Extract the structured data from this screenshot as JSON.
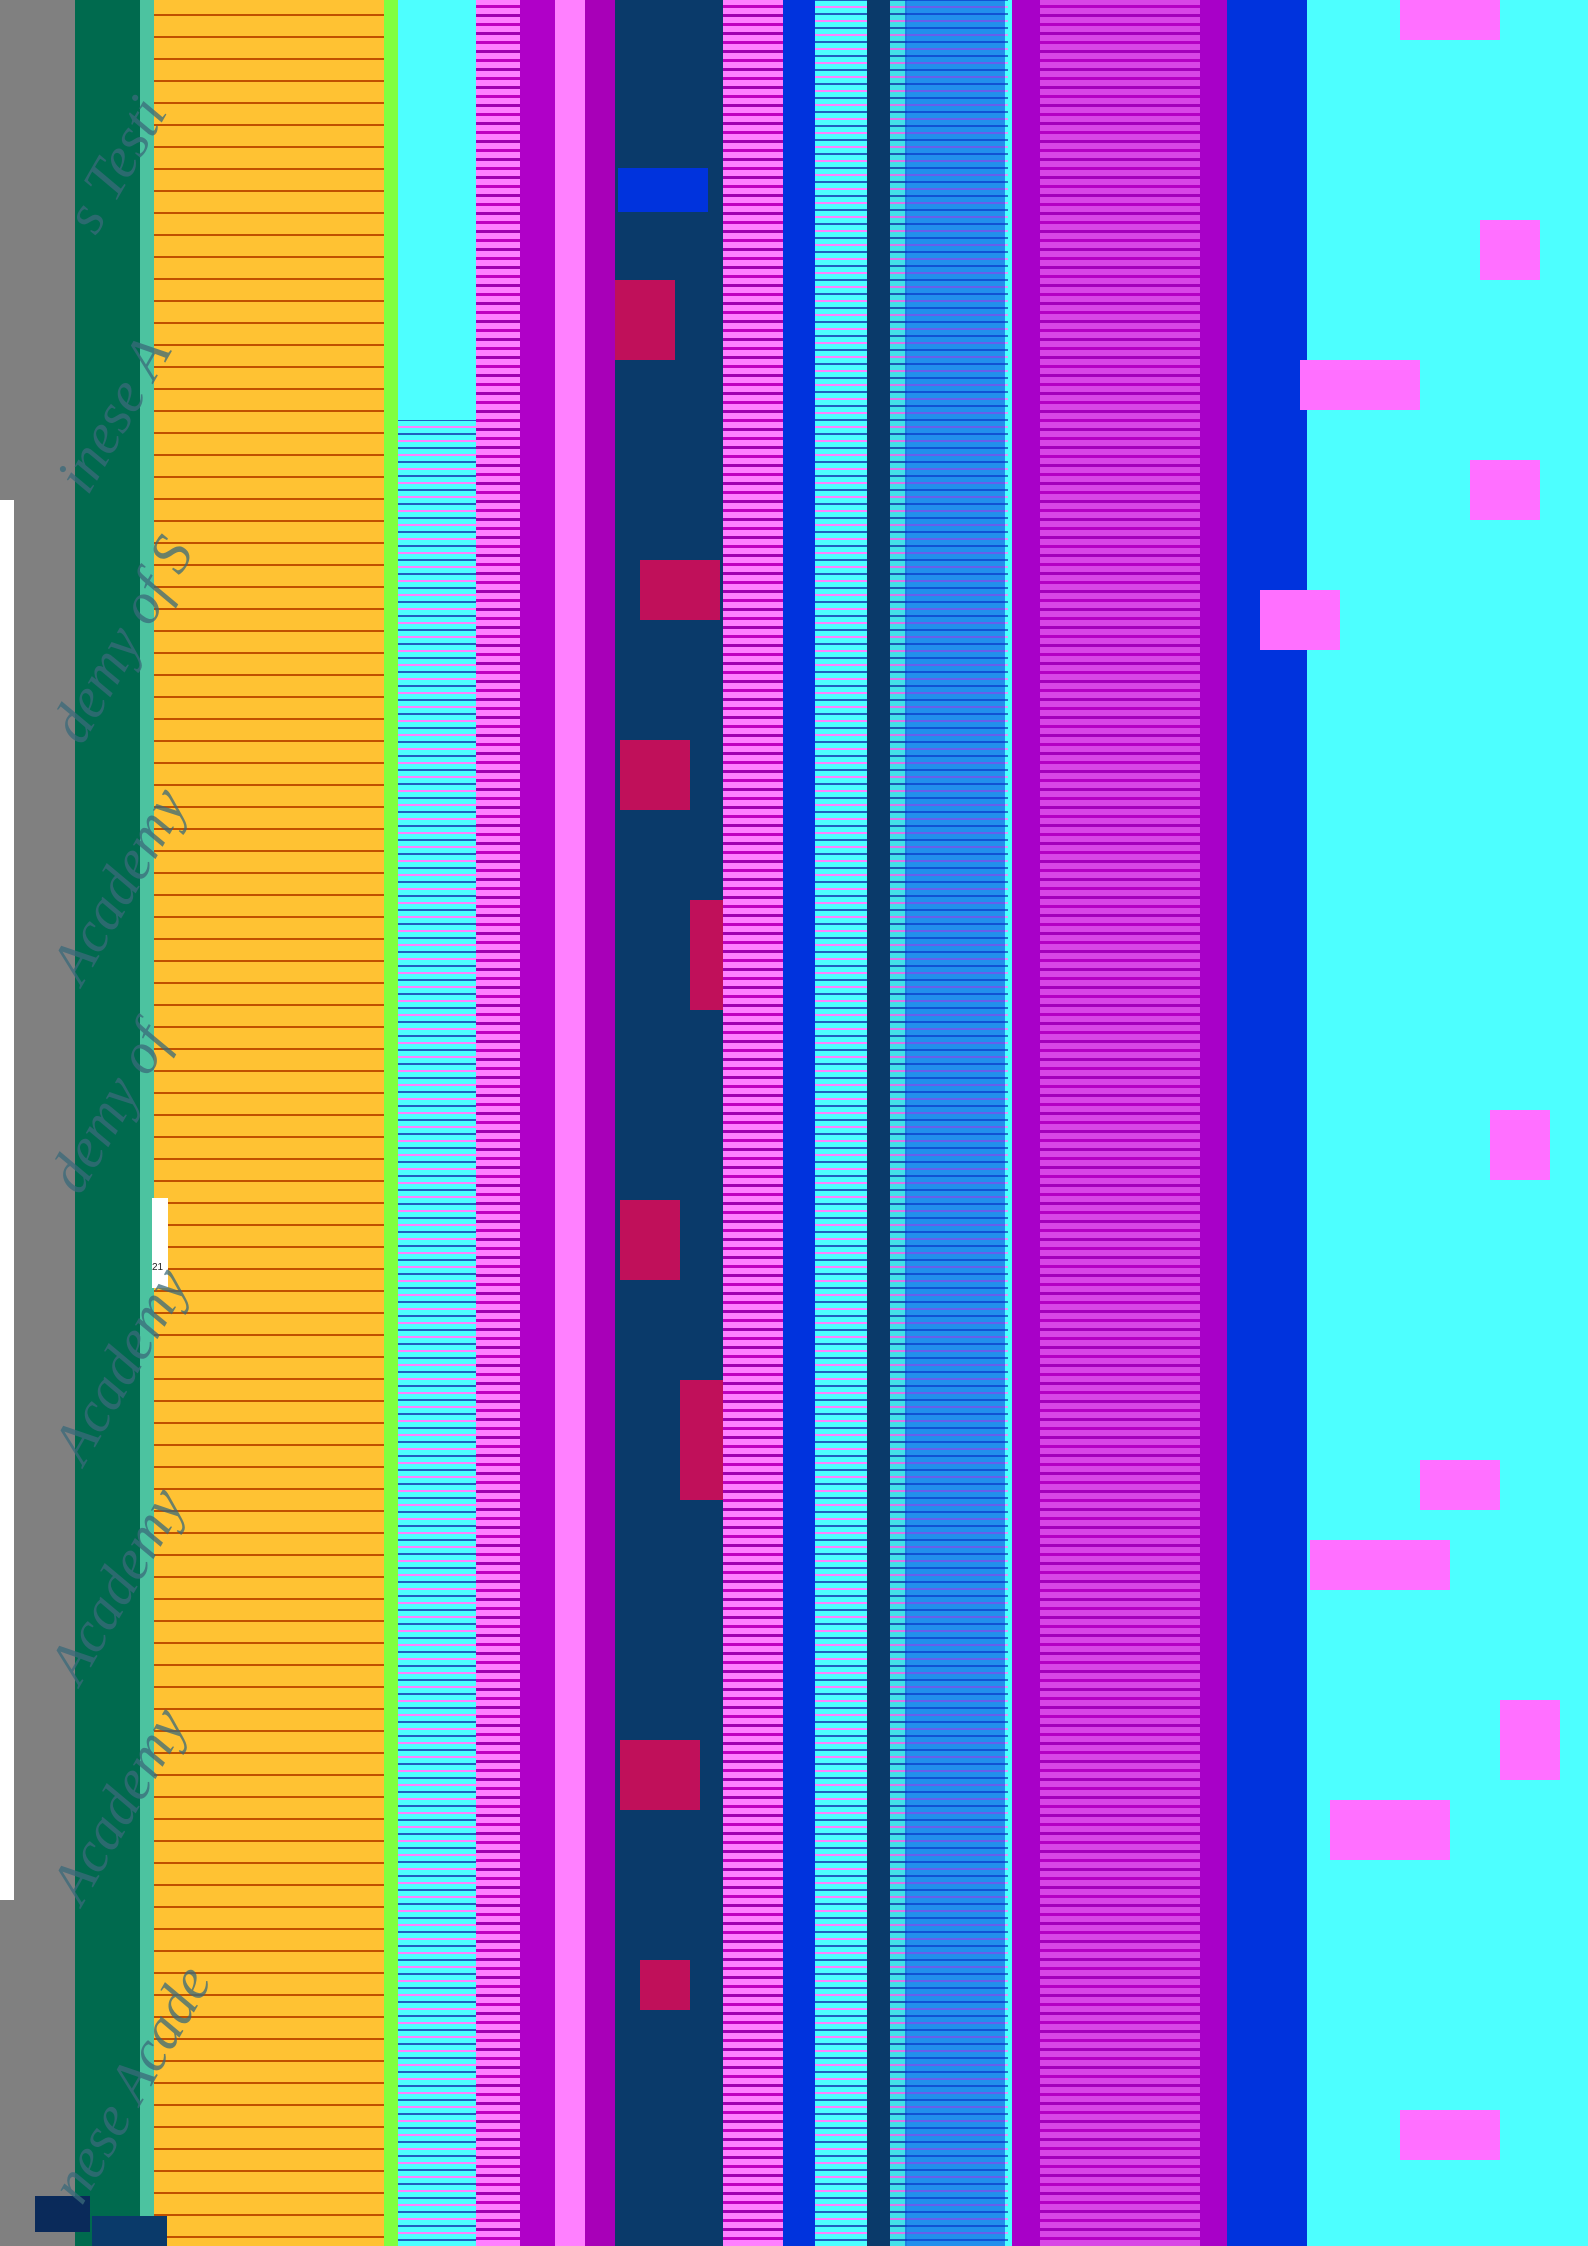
{
  "watermark": {
    "fragments": [
      "s Testi",
      "inese A",
      "demy of S",
      "Academy",
      "demy of",
      "Academy",
      "Academy",
      "Academy",
      "nese Acade"
    ]
  },
  "colors": {
    "dark_green": "#006a4e",
    "teal": "#4cc3a0",
    "orange": "#ffc233",
    "cyan": "#4dffff",
    "magenta": "#ff80ff",
    "purple": "#a800c8",
    "navy": "#0a3a6a",
    "blue": "#0033dd",
    "crimson": "#c0105a"
  },
  "small_label": "21"
}
